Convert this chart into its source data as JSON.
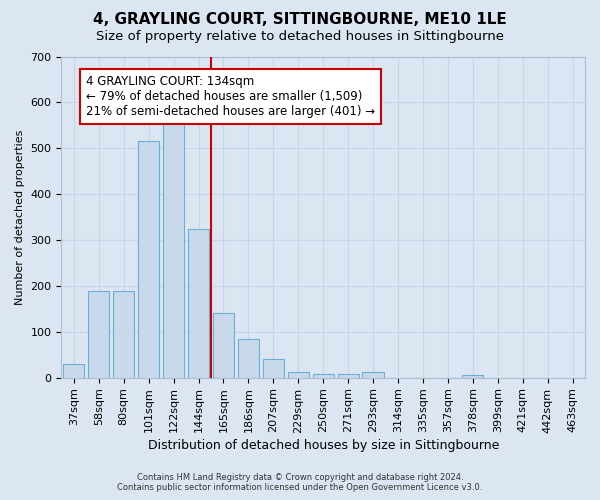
{
  "title": "4, GRAYLING COURT, SITTINGBOURNE, ME10 1LE",
  "subtitle": "Size of property relative to detached houses in Sittingbourne",
  "xlabel": "Distribution of detached houses by size in Sittingbourne",
  "ylabel": "Number of detached properties",
  "footer_line1": "Contains HM Land Registry data © Crown copyright and database right 2024.",
  "footer_line2": "Contains public sector information licensed under the Open Government Licence v3.0.",
  "categories": [
    "37sqm",
    "58sqm",
    "80sqm",
    "101sqm",
    "122sqm",
    "144sqm",
    "165sqm",
    "186sqm",
    "207sqm",
    "229sqm",
    "250sqm",
    "271sqm",
    "293sqm",
    "314sqm",
    "335sqm",
    "357sqm",
    "378sqm",
    "399sqm",
    "421sqm",
    "442sqm",
    "463sqm"
  ],
  "values": [
    30,
    190,
    190,
    515,
    565,
    325,
    140,
    85,
    40,
    12,
    8,
    8,
    12,
    0,
    0,
    0,
    5,
    0,
    0,
    0,
    0
  ],
  "bar_color": "#c8d9eb",
  "bar_edge_color": "#6baed6",
  "vline_x": 5.5,
  "vline_color": "#cc0000",
  "annotation_text": "4 GRAYLING COURT: 134sqm\n← 79% of detached houses are smaller (1,509)\n21% of semi-detached houses are larger (401) →",
  "annotation_box_facecolor": "#ffffff",
  "annotation_box_edgecolor": "#cc0000",
  "ylim": [
    0,
    700
  ],
  "yticks": [
    0,
    100,
    200,
    300,
    400,
    500,
    600,
    700
  ],
  "grid_color": "#c8d4e8",
  "bg_color": "#dce6f2",
  "title_fontsize": 11,
  "subtitle_fontsize": 9.5,
  "xlabel_fontsize": 9,
  "ylabel_fontsize": 8,
  "tick_fontsize": 8,
  "annot_fontsize": 8.5,
  "footer_fontsize": 6
}
